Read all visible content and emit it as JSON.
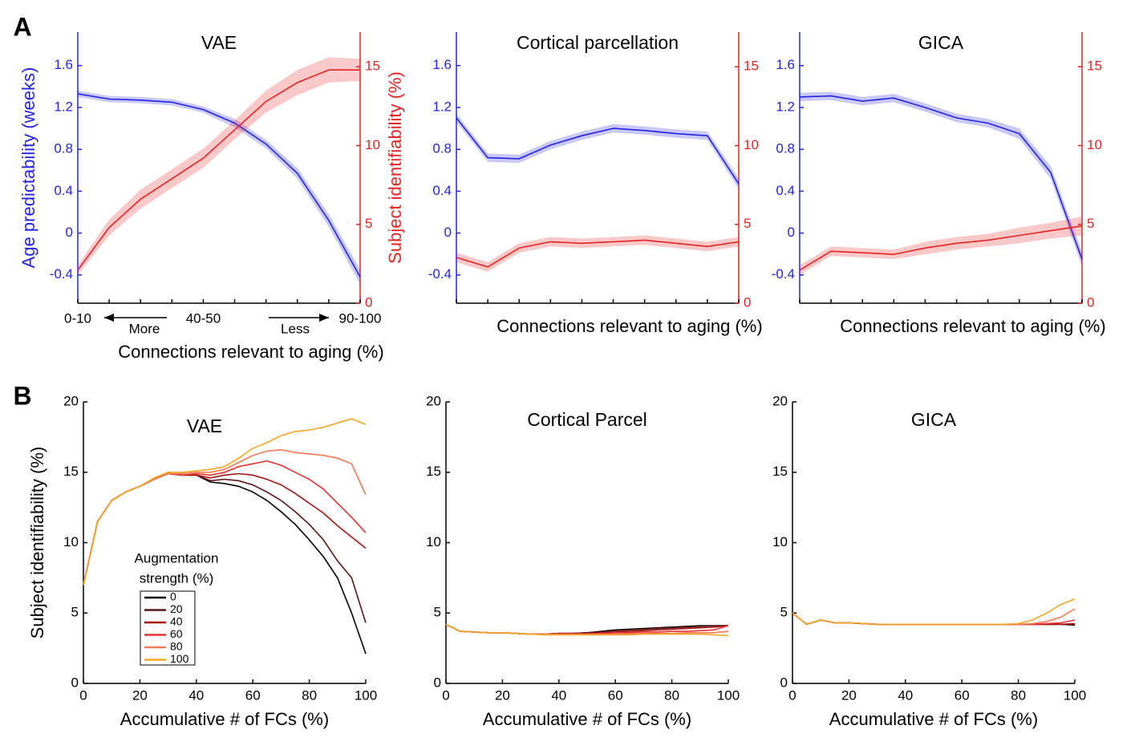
{
  "panel_labels": [
    "A",
    "B"
  ],
  "chart_data": [
    {
      "type": "dual_line",
      "title": "VAE",
      "categories": [
        "0-10",
        null,
        null,
        null,
        "40-50",
        null,
        null,
        null,
        null,
        "90-100"
      ],
      "annotations": [
        "More",
        "Less"
      ],
      "xlabel": "Connections relevant to aging (%)",
      "ylabel": "Age predictability (weeks)",
      "y2label": "Subject identifiability (%)",
      "ylim": [
        -0.67,
        1.92
      ],
      "yticks": [
        -0.4,
        0,
        0.4,
        0.8,
        1.2,
        1.6
      ],
      "y2lim": [
        0,
        17.2
      ],
      "y2ticks": [
        0,
        5,
        10,
        15
      ],
      "series": [
        {
          "color": "#2323e6",
          "values": [
            1.33,
            1.28,
            1.27,
            1.25,
            1.18,
            1.05,
            0.85,
            0.57,
            0.12,
            -0.42
          ],
          "errors": [
            0.03,
            0.03,
            0.03,
            0.03,
            0.03,
            0.04,
            0.04,
            0.05,
            0.06,
            0.07
          ]
        },
        {
          "color": "#e62323",
          "axis": "y2",
          "values": [
            2.1,
            4.8,
            6.6,
            7.9,
            9.2,
            11.0,
            12.8,
            14.0,
            14.8,
            14.8
          ],
          "errors": [
            0.3,
            0.5,
            0.6,
            0.6,
            0.6,
            0.6,
            0.7,
            0.8,
            0.8,
            0.7
          ]
        }
      ]
    },
    {
      "type": "dual_line",
      "title": "Cortical parcellation",
      "categories": [
        null,
        null,
        null,
        null,
        null,
        null,
        null,
        null,
        null,
        null
      ],
      "xlabel": "Connections relevant to aging (%)",
      "ylim": [
        -0.67,
        1.92
      ],
      "yticks": [
        -0.4,
        0,
        0.4,
        0.8,
        1.2,
        1.6
      ],
      "y2lim": [
        0,
        17.2
      ],
      "y2ticks": [
        0,
        5,
        10,
        15
      ],
      "series": [
        {
          "color": "#2323e6",
          "values": [
            1.1,
            0.72,
            0.71,
            0.84,
            0.93,
            1.0,
            0.98,
            0.95,
            0.93,
            0.47
          ],
          "errors": [
            0.04,
            0.04,
            0.04,
            0.04,
            0.04,
            0.04,
            0.04,
            0.04,
            0.04,
            0.05
          ]
        },
        {
          "color": "#e62323",
          "axis": "y2",
          "values": [
            2.9,
            2.3,
            3.5,
            3.9,
            3.8,
            3.9,
            4.0,
            3.8,
            3.6,
            3.9
          ],
          "errors": [
            0.3,
            0.3,
            0.3,
            0.3,
            0.3,
            0.3,
            0.3,
            0.3,
            0.3,
            0.3
          ]
        }
      ]
    },
    {
      "type": "dual_line",
      "title": "GICA",
      "categories": [
        null,
        null,
        null,
        null,
        null,
        null,
        null,
        null,
        null,
        null
      ],
      "xlabel": "Connections relevant to aging (%)",
      "ylim": [
        -0.67,
        1.92
      ],
      "yticks": [
        -0.4,
        0,
        0.4,
        0.8,
        1.2,
        1.6
      ],
      "y2lim": [
        0,
        17.2
      ],
      "y2ticks": [
        0,
        5,
        10,
        15
      ],
      "series": [
        {
          "color": "#2323e6",
          "values": [
            1.3,
            1.31,
            1.26,
            1.29,
            1.2,
            1.1,
            1.05,
            0.95,
            0.58,
            -0.25
          ],
          "errors": [
            0.04,
            0.04,
            0.04,
            0.04,
            0.04,
            0.04,
            0.04,
            0.05,
            0.06,
            0.07
          ]
        },
        {
          "color": "#e62323",
          "axis": "y2",
          "values": [
            2.1,
            3.3,
            3.2,
            3.1,
            3.5,
            3.8,
            4.0,
            4.3,
            4.6,
            4.9
          ],
          "errors": [
            0.3,
            0.3,
            0.3,
            0.3,
            0.4,
            0.4,
            0.4,
            0.5,
            0.5,
            0.6
          ]
        }
      ]
    },
    {
      "type": "line",
      "title": "VAE",
      "xlabel": "Accumulative # of FCs (%)",
      "ylabel": "Subject identifiability (%)",
      "legend_title": [
        "Augmentation",
        "strength  (%)"
      ],
      "xlim": [
        0,
        100
      ],
      "xticks": [
        0,
        20,
        40,
        60,
        80,
        100
      ],
      "ylim": [
        0,
        20
      ],
      "yticks": [
        0,
        5,
        10,
        15,
        20
      ],
      "x": [
        0,
        5,
        10,
        15,
        20,
        25,
        30,
        35,
        40,
        45,
        50,
        55,
        60,
        65,
        70,
        75,
        80,
        85,
        90,
        95,
        100
      ],
      "series": [
        {
          "name": "0",
          "color": "#000000",
          "values": [
            7,
            11.5,
            13,
            13.6,
            14,
            14.5,
            14.9,
            14.8,
            14.8,
            14.3,
            14.2,
            14.0,
            13.6,
            13.0,
            12.2,
            11.3,
            10.2,
            9.0,
            7.5,
            5.0,
            2.1
          ]
        },
        {
          "name": "20",
          "color": "#5a1414",
          "values": [
            7,
            11.5,
            13,
            13.6,
            14,
            14.5,
            14.9,
            14.8,
            14.8,
            14.4,
            14.5,
            14.4,
            14.1,
            13.6,
            13.0,
            12.2,
            11.3,
            10.2,
            8.7,
            7.5,
            4.3
          ]
        },
        {
          "name": "40",
          "color": "#a31414",
          "values": [
            7,
            11.5,
            13,
            13.6,
            14,
            14.5,
            14.9,
            14.8,
            14.8,
            14.6,
            14.8,
            14.9,
            14.8,
            14.5,
            14.1,
            13.5,
            12.8,
            12.1,
            11.2,
            10.4,
            9.6
          ]
        },
        {
          "name": "60",
          "color": "#e83232",
          "values": [
            7,
            11.5,
            13,
            13.6,
            14,
            14.5,
            14.9,
            14.8,
            14.9,
            14.8,
            15.0,
            15.4,
            15.6,
            15.8,
            15.5,
            15.0,
            14.5,
            13.8,
            12.8,
            11.8,
            10.7
          ]
        },
        {
          "name": "80",
          "color": "#f47a52",
          "values": [
            7,
            11.5,
            13,
            13.6,
            14,
            14.5,
            14.9,
            14.9,
            15.0,
            15.0,
            15.2,
            15.7,
            16.2,
            16.5,
            16.6,
            16.4,
            16.3,
            16.2,
            16.0,
            15.6,
            13.4
          ]
        },
        {
          "name": "100",
          "color": "#f5a623",
          "values": [
            7,
            11.5,
            13,
            13.6,
            14,
            14.6,
            15.0,
            15.0,
            15.1,
            15.2,
            15.4,
            16.0,
            16.7,
            17.1,
            17.6,
            17.9,
            18.0,
            18.2,
            18.5,
            18.8,
            18.4
          ]
        }
      ]
    },
    {
      "type": "line",
      "title": "Cortical Parcel",
      "xlabel": "Accumulative # of FCs (%)",
      "xlim": [
        0,
        100
      ],
      "xticks": [
        0,
        20,
        40,
        60,
        80,
        100
      ],
      "ylim": [
        0,
        20
      ],
      "yticks": [
        0,
        5,
        10,
        15,
        20
      ],
      "x": [
        0,
        5,
        10,
        15,
        20,
        25,
        30,
        35,
        40,
        45,
        50,
        55,
        60,
        65,
        70,
        75,
        80,
        85,
        90,
        95,
        100
      ],
      "series": [
        {
          "color": "#000000",
          "values": [
            4.2,
            3.7,
            3.65,
            3.6,
            3.6,
            3.55,
            3.5,
            3.5,
            3.55,
            3.55,
            3.6,
            3.7,
            3.8,
            3.85,
            3.9,
            3.95,
            4.0,
            4.05,
            4.1,
            4.1,
            4.1
          ]
        },
        {
          "color": "#5a1414",
          "values": [
            4.2,
            3.7,
            3.65,
            3.6,
            3.6,
            3.55,
            3.5,
            3.5,
            3.55,
            3.55,
            3.6,
            3.65,
            3.75,
            3.8,
            3.85,
            3.9,
            3.95,
            4.0,
            4.05,
            4.1,
            4.1
          ]
        },
        {
          "color": "#a31414",
          "values": [
            4.2,
            3.7,
            3.65,
            3.6,
            3.6,
            3.55,
            3.5,
            3.5,
            3.55,
            3.55,
            3.55,
            3.6,
            3.65,
            3.7,
            3.75,
            3.8,
            3.85,
            3.9,
            3.95,
            4.0,
            4.1
          ]
        },
        {
          "color": "#e83232",
          "values": [
            4.2,
            3.7,
            3.65,
            3.6,
            3.6,
            3.55,
            3.5,
            3.5,
            3.5,
            3.5,
            3.5,
            3.55,
            3.6,
            3.6,
            3.65,
            3.65,
            3.7,
            3.7,
            3.75,
            3.8,
            4.1
          ]
        },
        {
          "color": "#f47a52",
          "values": [
            4.2,
            3.7,
            3.65,
            3.6,
            3.6,
            3.55,
            3.5,
            3.5,
            3.5,
            3.5,
            3.5,
            3.5,
            3.5,
            3.5,
            3.55,
            3.55,
            3.55,
            3.6,
            3.6,
            3.6,
            3.7
          ]
        },
        {
          "color": "#f5a623",
          "values": [
            4.2,
            3.7,
            3.65,
            3.6,
            3.6,
            3.55,
            3.5,
            3.45,
            3.45,
            3.45,
            3.45,
            3.45,
            3.45,
            3.45,
            3.5,
            3.5,
            3.5,
            3.5,
            3.5,
            3.45,
            3.4
          ]
        }
      ]
    },
    {
      "type": "line",
      "title": "GICA",
      "xlabel": "Accumulative # of FCs (%)",
      "xlim": [
        0,
        100
      ],
      "xticks": [
        0,
        20,
        40,
        60,
        80,
        100
      ],
      "ylim": [
        0,
        20
      ],
      "yticks": [
        0,
        5,
        10,
        15,
        20
      ],
      "x": [
        0,
        5,
        10,
        15,
        20,
        25,
        30,
        35,
        40,
        45,
        50,
        55,
        60,
        65,
        70,
        75,
        80,
        85,
        90,
        95,
        100
      ],
      "series": [
        {
          "color": "#000000",
          "values": [
            5.0,
            4.2,
            4.5,
            4.3,
            4.3,
            4.25,
            4.2,
            4.2,
            4.2,
            4.2,
            4.2,
            4.2,
            4.2,
            4.2,
            4.2,
            4.2,
            4.2,
            4.2,
            4.2,
            4.2,
            4.15
          ]
        },
        {
          "color": "#5a1414",
          "values": [
            5.0,
            4.2,
            4.5,
            4.3,
            4.3,
            4.25,
            4.2,
            4.2,
            4.2,
            4.2,
            4.2,
            4.2,
            4.2,
            4.2,
            4.2,
            4.2,
            4.2,
            4.2,
            4.2,
            4.2,
            4.2
          ]
        },
        {
          "color": "#a31414",
          "values": [
            5.0,
            4.2,
            4.5,
            4.3,
            4.3,
            4.25,
            4.2,
            4.2,
            4.2,
            4.2,
            4.2,
            4.2,
            4.2,
            4.2,
            4.2,
            4.2,
            4.2,
            4.2,
            4.2,
            4.2,
            4.25
          ]
        },
        {
          "color": "#e83232",
          "values": [
            5.0,
            4.2,
            4.5,
            4.3,
            4.3,
            4.25,
            4.2,
            4.2,
            4.2,
            4.2,
            4.2,
            4.2,
            4.2,
            4.2,
            4.2,
            4.2,
            4.2,
            4.2,
            4.25,
            4.3,
            4.5
          ]
        },
        {
          "color": "#f47a52",
          "values": [
            5.0,
            4.2,
            4.5,
            4.3,
            4.3,
            4.25,
            4.2,
            4.2,
            4.2,
            4.2,
            4.2,
            4.2,
            4.2,
            4.2,
            4.2,
            4.2,
            4.2,
            4.25,
            4.4,
            4.7,
            5.3
          ]
        },
        {
          "color": "#f5a623",
          "values": [
            5.0,
            4.2,
            4.5,
            4.3,
            4.3,
            4.25,
            4.2,
            4.2,
            4.2,
            4.2,
            4.2,
            4.2,
            4.2,
            4.2,
            4.2,
            4.2,
            4.25,
            4.5,
            5.0,
            5.6,
            6.0
          ]
        }
      ]
    }
  ]
}
